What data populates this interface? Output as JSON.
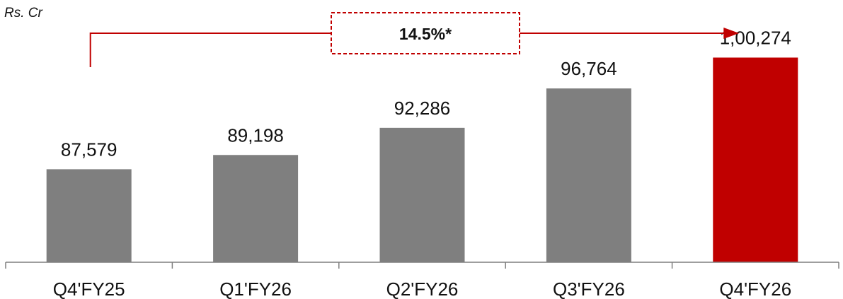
{
  "chart_data": {
    "type": "bar",
    "unit_label": "Rs. Cr",
    "categories": [
      "Q4'FY25",
      "Q1'FY26",
      "Q2'FY26",
      "Q3'FY26",
      "Q4'FY26"
    ],
    "values": [
      87579,
      89198,
      92286,
      96764,
      100274
    ],
    "value_labels": [
      "87,579",
      "89,198",
      "92,286",
      "96,764",
      "1,00,274"
    ],
    "ylim": [
      77000,
      102000
    ],
    "grid": false,
    "colors": {
      "default": "#7f7f7f",
      "highlight": "#c00000",
      "arrow": "#c00000"
    },
    "highlight_index": 4,
    "annotation": {
      "text": "14.5%*",
      "from_index": 0,
      "to_index": 4
    }
  }
}
